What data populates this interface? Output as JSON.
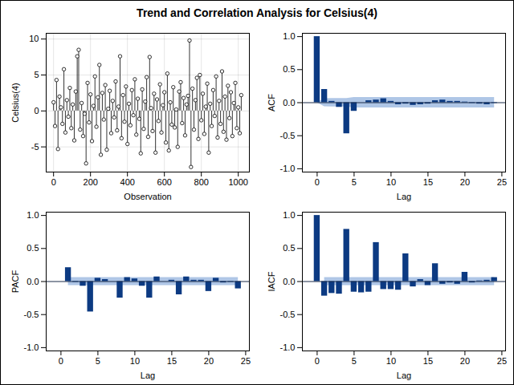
{
  "title": "Trend and Correlation Analysis for Celsius(4)",
  "chart_data": [
    {
      "type": "needle",
      "x_label": "Observation",
      "y_label": "Celsius(4)",
      "color": "#000000",
      "marker": "circle",
      "grid": true,
      "xlim": [
        -40,
        1060
      ],
      "xticks": [
        0,
        200,
        400,
        600,
        800,
        1000
      ],
      "ylim": [
        -8.5,
        10.8
      ],
      "yticks": [
        -5,
        0,
        5,
        10
      ],
      "x": [
        0,
        8,
        16,
        24,
        32,
        40,
        48,
        56,
        64,
        72,
        80,
        88,
        96,
        104,
        112,
        120,
        128,
        136,
        144,
        152,
        160,
        168,
        176,
        184,
        192,
        200,
        208,
        216,
        224,
        232,
        240,
        248,
        256,
        264,
        272,
        280,
        288,
        296,
        304,
        312,
        320,
        328,
        336,
        344,
        352,
        360,
        368,
        376,
        384,
        392,
        400,
        408,
        416,
        424,
        432,
        440,
        448,
        456,
        464,
        472,
        480,
        488,
        496,
        504,
        512,
        520,
        528,
        536,
        544,
        552,
        560,
        568,
        576,
        584,
        592,
        600,
        608,
        616,
        624,
        632,
        640,
        648,
        656,
        664,
        672,
        680,
        688,
        696,
        704,
        712,
        720,
        728,
        736,
        744,
        752,
        760,
        768,
        776,
        784,
        792,
        800,
        808,
        816,
        824,
        832,
        840,
        848,
        856,
        864,
        872,
        880,
        888,
        896,
        904,
        912,
        920,
        928,
        936,
        944,
        952,
        960,
        968,
        976,
        984,
        992,
        1000,
        1008,
        1016
      ],
      "values": [
        1.2,
        -2.1,
        4.3,
        -5.3,
        2.0,
        0.5,
        -1.8,
        5.8,
        -3.0,
        1.5,
        -0.8,
        3.2,
        -2.4,
        0.9,
        -4.1,
        2.7,
        7.6,
        8.5,
        -2.6,
        1.1,
        -3.5,
        -0.4,
        -7.3,
        3.9,
        -1.6,
        2.3,
        -4.2,
        0.7,
        4.8,
        -2.2,
        1.9,
        6.4,
        -6.1,
        2.5,
        -1.2,
        3.6,
        -5.4,
        0.3,
        2.8,
        -3.1,
        1.4,
        -0.9,
        4.1,
        -2.7,
        0.6,
        7.6,
        -3.8,
        2.2,
        -1.5,
        3.4,
        -4.6,
        1.0,
        -2.0,
        2.9,
        -0.6,
        4.4,
        -3.3,
        1.7,
        -1.1,
        -5.9,
        3.0,
        -2.5,
        1.3,
        4.7,
        -3.6,
        7.5,
        0.4,
        -2.8,
        2.4,
        -5.8,
        1.6,
        -1.4,
        3.7,
        -3.0,
        0.8,
        2.6,
        -4.4,
        5.2,
        -5.5,
        1.2,
        -1.9,
        3.3,
        -2.3,
        0.2,
        -5.0,
        2.7,
        4.0,
        -1.7,
        1.8,
        -3.4,
        0.9,
        2.1,
        9.8,
        -7.8,
        3.1,
        -2.6,
        1.5,
        4.6,
        -3.9,
        5.0,
        -1.3,
        2.4,
        -3.2,
        0.6,
        3.8,
        -5.8,
        1.0,
        -2.1,
        2.9,
        -0.7,
        4.8,
        -3.7,
        1.4,
        -1.8,
        5.5,
        -2.9,
        2.0,
        -4.0,
        3.5,
        -1.0,
        2.6,
        -3.5,
        1.1,
        3.9,
        -2.4,
        0.5,
        -3.1,
        2.2
      ]
    },
    {
      "type": "bar",
      "x_label": "Lag",
      "y_label": "ACF",
      "color": "#0c3a82",
      "xlim": [
        -2,
        25.5
      ],
      "xticks": [
        0,
        5,
        10,
        15,
        20,
        25
      ],
      "ylim": [
        -1.05,
        1.05
      ],
      "yticks": [
        {
          "value": -1,
          "label": "-1.0"
        },
        {
          "value": -0.5,
          "label": "-0.5"
        },
        {
          "value": 0,
          "label": "0.0"
        },
        {
          "value": 0.5,
          "label": "0.5"
        },
        {
          "value": 1,
          "label": "1.0"
        }
      ],
      "x": [
        0,
        1,
        2,
        3,
        4,
        5,
        6,
        7,
        8,
        9,
        10,
        11,
        12,
        13,
        14,
        15,
        16,
        17,
        18,
        19,
        20,
        21,
        22,
        23,
        24
      ],
      "values": [
        1.0,
        0.2,
        0.02,
        -0.07,
        -0.47,
        -0.13,
        0.0,
        0.03,
        0.04,
        0.06,
        0.02,
        -0.03,
        -0.02,
        -0.04,
        -0.03,
        -0.02,
        0.03,
        0.04,
        0.02,
        0.02,
        0.01,
        -0.01,
        -0.02,
        -0.03,
        -0.01
      ],
      "confidence_band": {
        "color": "#a6c0e3",
        "x": [
          0,
          1,
          2,
          3,
          4,
          5,
          6,
          7,
          8,
          9,
          10,
          11,
          12,
          13,
          14,
          15,
          16,
          17,
          18,
          19,
          20,
          21,
          22,
          23,
          24
        ],
        "lower": [
          0,
          -0.06,
          -0.065,
          -0.065,
          -0.065,
          -0.08,
          -0.08,
          -0.08,
          -0.08,
          -0.08,
          -0.08,
          -0.08,
          -0.08,
          -0.08,
          -0.08,
          -0.08,
          -0.08,
          -0.08,
          -0.08,
          -0.08,
          -0.08,
          -0.08,
          -0.08,
          -0.08,
          -0.08
        ],
        "upper": [
          0,
          0.06,
          0.065,
          0.065,
          0.065,
          0.08,
          0.08,
          0.08,
          0.08,
          0.08,
          0.08,
          0.08,
          0.08,
          0.08,
          0.08,
          0.08,
          0.08,
          0.08,
          0.08,
          0.08,
          0.08,
          0.08,
          0.08,
          0.08,
          0.08
        ]
      }
    },
    {
      "type": "bar",
      "x_label": "Lag",
      "y_label": "PACF",
      "color": "#0c3a82",
      "xlim": [
        -2,
        25.5
      ],
      "xticks": [
        0,
        5,
        10,
        15,
        20,
        25
      ],
      "ylim": [
        -1.05,
        1.05
      ],
      "yticks": [
        {
          "value": -1,
          "label": "-1.0"
        },
        {
          "value": -0.5,
          "label": "-0.5"
        },
        {
          "value": 0,
          "label": "0.0"
        },
        {
          "value": 0.5,
          "label": "0.5"
        },
        {
          "value": 1,
          "label": "1.0"
        }
      ],
      "x": [
        1,
        2,
        3,
        4,
        5,
        6,
        7,
        8,
        9,
        10,
        11,
        12,
        13,
        14,
        15,
        16,
        17,
        18,
        19,
        20,
        21,
        22,
        23,
        24
      ],
      "values": [
        0.21,
        -0.01,
        -0.07,
        -0.46,
        0.05,
        0.03,
        0.0,
        -0.25,
        0.06,
        0.04,
        -0.07,
        -0.25,
        0.07,
        0.0,
        0.02,
        -0.2,
        0.07,
        0.02,
        0.02,
        -0.15,
        0.05,
        -0.02,
        -0.01,
        -0.11
      ],
      "confidence_band": {
        "color": "#a6c0e3",
        "x": [
          1,
          24
        ],
        "lower": [
          -0.06,
          -0.06
        ],
        "upper": [
          0.06,
          0.06
        ]
      }
    },
    {
      "type": "bar",
      "x_label": "Lag",
      "y_label": "IACF",
      "color": "#0c3a82",
      "xlim": [
        -2,
        25.5
      ],
      "xticks": [
        0,
        5,
        10,
        15,
        20,
        25
      ],
      "ylim": [
        -1.05,
        1.05
      ],
      "yticks": [
        {
          "value": -1,
          "label": "-1.0"
        },
        {
          "value": -0.5,
          "label": "-0.5"
        },
        {
          "value": 0,
          "label": "0.0"
        },
        {
          "value": 0.5,
          "label": "0.5"
        },
        {
          "value": 1,
          "label": "1.0"
        }
      ],
      "x": [
        0,
        1,
        2,
        3,
        4,
        5,
        6,
        7,
        8,
        9,
        10,
        11,
        12,
        13,
        14,
        15,
        16,
        17,
        18,
        19,
        20,
        21,
        22,
        23,
        24
      ],
      "values": [
        1.0,
        -0.22,
        -0.18,
        -0.19,
        0.79,
        -0.16,
        -0.17,
        -0.16,
        0.59,
        -0.12,
        -0.12,
        -0.13,
        0.42,
        -0.08,
        0.03,
        -0.06,
        0.27,
        -0.04,
        -0.02,
        -0.04,
        0.14,
        -0.02,
        0.01,
        0.02,
        0.06
      ],
      "confidence_band": {
        "color": "#a6c0e3",
        "x": [
          1,
          24
        ],
        "lower": [
          -0.06,
          -0.06
        ],
        "upper": [
          0.06,
          0.06
        ]
      }
    }
  ]
}
